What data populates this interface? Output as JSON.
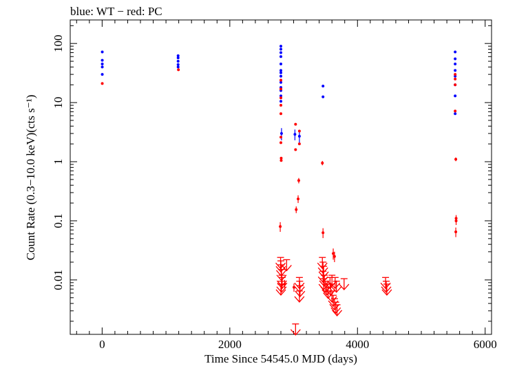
{
  "chart_data": {
    "type": "scatter",
    "title": "blue: WT − red: PC",
    "xlabel": "Time Since 54545.0 MJD (days)",
    "ylabel": "Count Rate (0.3−10.0 keV)(cts s⁻¹)",
    "xlim": [
      -500,
      6100
    ],
    "ylim": [
      0.0012,
      250
    ],
    "yscale": "log",
    "x_ticks": [
      0,
      2000,
      4000,
      6000
    ],
    "x_tick_labels": [
      "0",
      "2000",
      "4000",
      "6000"
    ],
    "y_ticks": [
      0.01,
      0.1,
      1,
      10,
      100
    ],
    "y_tick_labels": [
      "0.01",
      "0.1",
      "1",
      "10",
      "100"
    ],
    "grid": false,
    "legend": "none",
    "series": [
      {
        "name": "WT",
        "color": "#0000ff",
        "points": [
          {
            "x": 2,
            "y": 72
          },
          {
            "x": 2,
            "y": 52
          },
          {
            "x": 2,
            "y": 45
          },
          {
            "x": 2,
            "y": 40
          },
          {
            "x": 2,
            "y": 30
          },
          {
            "x": 1190,
            "y": 62
          },
          {
            "x": 1190,
            "y": 57
          },
          {
            "x": 1190,
            "y": 50
          },
          {
            "x": 1190,
            "y": 44
          },
          {
            "x": 1190,
            "y": 40
          },
          {
            "x": 2800,
            "y": 90
          },
          {
            "x": 2800,
            "y": 80
          },
          {
            "x": 2800,
            "y": 70
          },
          {
            "x": 2800,
            "y": 60
          },
          {
            "x": 2800,
            "y": 45
          },
          {
            "x": 2800,
            "y": 35
          },
          {
            "x": 2800,
            "y": 32
          },
          {
            "x": 2800,
            "y": 28
          },
          {
            "x": 2800,
            "y": 22
          },
          {
            "x": 2800,
            "y": 18
          },
          {
            "x": 2800,
            "y": 16
          },
          {
            "x": 2800,
            "y": 13
          },
          {
            "x": 2800,
            "y": 10.5
          },
          {
            "x": 2810,
            "y": 3.0,
            "yerr": 0.7
          },
          {
            "x": 3020,
            "y": 2.9,
            "yerr": 0.6
          },
          {
            "x": 3090,
            "y": 2.7,
            "yerr": 0.6
          },
          {
            "x": 3460,
            "y": 19
          },
          {
            "x": 3460,
            "y": 12.5
          },
          {
            "x": 5530,
            "y": 72
          },
          {
            "x": 5530,
            "y": 55
          },
          {
            "x": 5530,
            "y": 45
          },
          {
            "x": 5530,
            "y": 35
          },
          {
            "x": 5530,
            "y": 28
          },
          {
            "x": 5530,
            "y": 20
          },
          {
            "x": 5530,
            "y": 13
          },
          {
            "x": 5530,
            "y": 6.5
          }
        ]
      },
      {
        "name": "PC",
        "color": "#ff0000",
        "points": [
          {
            "x": 2,
            "y": 21
          },
          {
            "x": 1195,
            "y": 36
          },
          {
            "x": 2800,
            "y": 24
          },
          {
            "x": 2800,
            "y": 17
          },
          {
            "x": 2800,
            "y": 12
          },
          {
            "x": 2800,
            "y": 9
          },
          {
            "x": 2800,
            "y": 6.5
          },
          {
            "x": 2800,
            "y": 2.6
          },
          {
            "x": 2800,
            "y": 2.1
          },
          {
            "x": 2805,
            "y": 1.15
          },
          {
            "x": 2805,
            "y": 1.05
          },
          {
            "x": 2790,
            "y": 0.08,
            "yerr": 0.015
          },
          {
            "x": 2860,
            "y": 0.0085,
            "yerr": 0.0015
          },
          {
            "x": 3005,
            "y": 0.0075,
            "yerr": 0.0012
          },
          {
            "x": 3030,
            "y": 4.3
          },
          {
            "x": 3030,
            "y": 1.6
          },
          {
            "x": 3090,
            "y": 3.3
          },
          {
            "x": 3090,
            "y": 2.0
          },
          {
            "x": 3080,
            "y": 0.48,
            "yerr": 0.05
          },
          {
            "x": 3070,
            "y": 0.235,
            "yerr": 0.035
          },
          {
            "x": 3040,
            "y": 0.155,
            "yerr": 0.02
          },
          {
            "x": 3450,
            "y": 0.95,
            "yerr": 0.08
          },
          {
            "x": 3460,
            "y": 0.063,
            "yerr": 0.012
          },
          {
            "x": 3620,
            "y": 0.028,
            "yerr": 0.006
          },
          {
            "x": 3640,
            "y": 0.025,
            "yerr": 0.005
          },
          {
            "x": 5530,
            "y": 30
          },
          {
            "x": 5530,
            "y": 25
          },
          {
            "x": 5530,
            "y": 20
          },
          {
            "x": 5530,
            "y": 7.2
          },
          {
            "x": 5540,
            "y": 1.1,
            "yerr": 0.08
          },
          {
            "x": 5545,
            "y": 0.11,
            "yerr": 0.015
          },
          {
            "x": 5545,
            "y": 0.1,
            "yerr": 0.015
          },
          {
            "x": 5540,
            "y": 0.065,
            "yerr": 0.012
          }
        ]
      },
      {
        "name": "PC upper limits",
        "color": "#ff0000",
        "upper_limits": [
          {
            "x": 2795,
            "y": 0.024
          },
          {
            "x": 2800,
            "y": 0.021
          },
          {
            "x": 2805,
            "y": 0.018
          },
          {
            "x": 2810,
            "y": 0.015
          },
          {
            "x": 2815,
            "y": 0.012
          },
          {
            "x": 2820,
            "y": 0.011
          },
          {
            "x": 2810,
            "y": 0.0095
          },
          {
            "x": 2800,
            "y": 0.0085
          },
          {
            "x": 2890,
            "y": 0.022
          },
          {
            "x": 3030,
            "y": 0.0018
          },
          {
            "x": 3090,
            "y": 0.011
          },
          {
            "x": 3095,
            "y": 0.0095
          },
          {
            "x": 3100,
            "y": 0.008
          },
          {
            "x": 3090,
            "y": 0.0065
          },
          {
            "x": 3450,
            "y": 0.024
          },
          {
            "x": 3460,
            "y": 0.02
          },
          {
            "x": 3470,
            "y": 0.017
          },
          {
            "x": 3460,
            "y": 0.014
          },
          {
            "x": 3480,
            "y": 0.012
          },
          {
            "x": 3470,
            "y": 0.0105
          },
          {
            "x": 3500,
            "y": 0.0095
          },
          {
            "x": 3520,
            "y": 0.0085
          },
          {
            "x": 3540,
            "y": 0.0075
          },
          {
            "x": 3570,
            "y": 0.011
          },
          {
            "x": 3580,
            "y": 0.0085
          },
          {
            "x": 3600,
            "y": 0.012
          },
          {
            "x": 3600,
            "y": 0.0065
          },
          {
            "x": 3620,
            "y": 0.0055
          },
          {
            "x": 3640,
            "y": 0.0048
          },
          {
            "x": 3650,
            "y": 0.011
          },
          {
            "x": 3660,
            "y": 0.0042
          },
          {
            "x": 3680,
            "y": 0.0038
          },
          {
            "x": 3670,
            "y": 0.0095
          },
          {
            "x": 3790,
            "y": 0.0105
          },
          {
            "x": 4440,
            "y": 0.011
          },
          {
            "x": 4450,
            "y": 0.0095
          },
          {
            "x": 4460,
            "y": 0.0085
          }
        ]
      }
    ]
  }
}
